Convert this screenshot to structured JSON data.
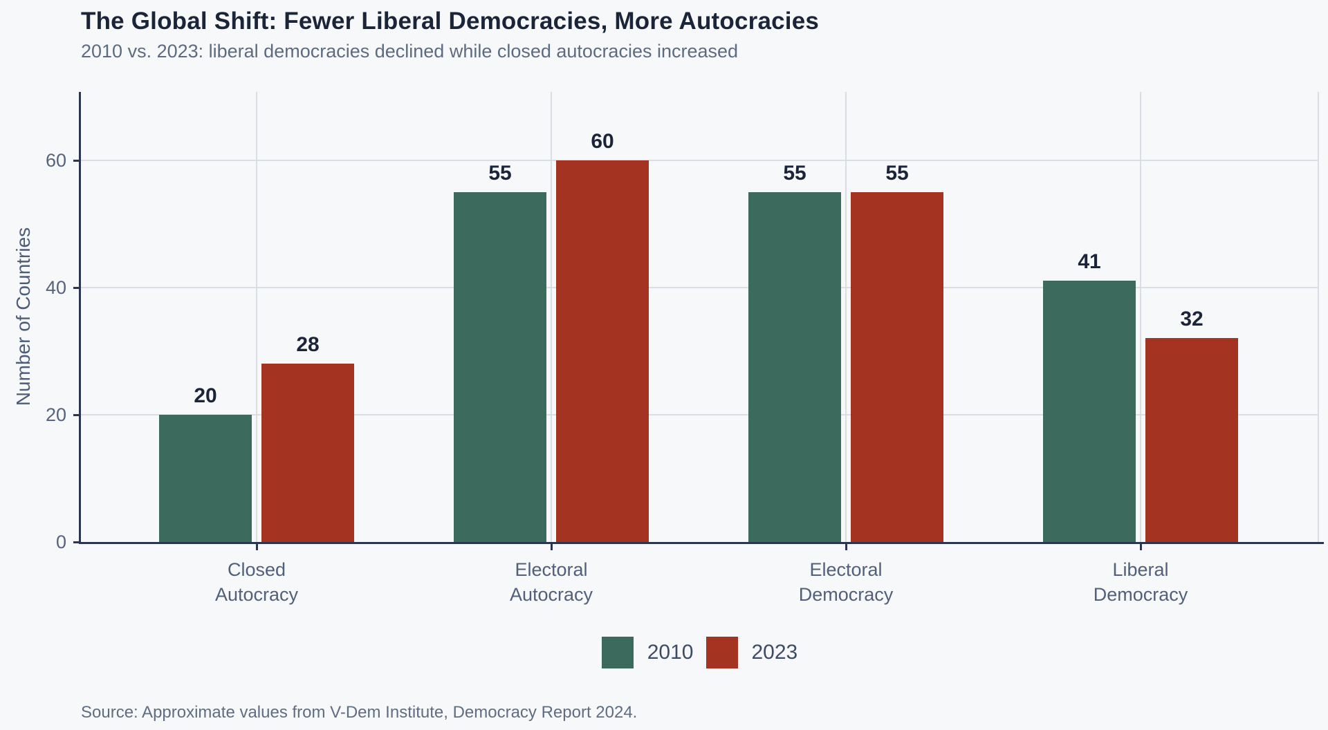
{
  "page": {
    "title": "The Global Shift: Fewer Liberal Democracies, More Autocracies",
    "subtitle": "2010 vs. 2023: liberal democracies declined while closed autocracies increased",
    "source": "Source: Approximate values from V-Dem Institute, Democracy Report 2024."
  },
  "colors": {
    "background": "#f7f8fa",
    "series_2010": "#3c6b5d",
    "series_2023": "#a43321",
    "axis": "#2a364f",
    "grid": "#d9dde4",
    "title_text": "#1b2539",
    "muted_text": "#55637c",
    "legend_text": "#3e4b64"
  },
  "chart_data": {
    "type": "bar",
    "title": "The Global Shift: Fewer Liberal Democracies, More Autocracies",
    "subtitle": "2010 vs. 2023: liberal democracies declined while closed autocracies increased",
    "categories": [
      "Closed\nAutocracy",
      "Electoral\nAutocracy",
      "Electoral\nDemocracy",
      "Liberal\nDemocracy"
    ],
    "series": [
      {
        "name": "2010",
        "color_key": "series_2010",
        "values": [
          20,
          55,
          55,
          41
        ]
      },
      {
        "name": "2023",
        "color_key": "series_2023",
        "values": [
          28,
          60,
          55,
          32
        ]
      }
    ],
    "xlabel": "",
    "ylabel": "Number of Countries",
    "yticks": [
      0,
      20,
      40,
      60
    ],
    "ylim": [
      0,
      70.7
    ],
    "grid": true,
    "value_labels": true,
    "legend_position": "bottom",
    "source": "Source: Approximate values from V-Dem Institute, Democracy Report 2024."
  }
}
